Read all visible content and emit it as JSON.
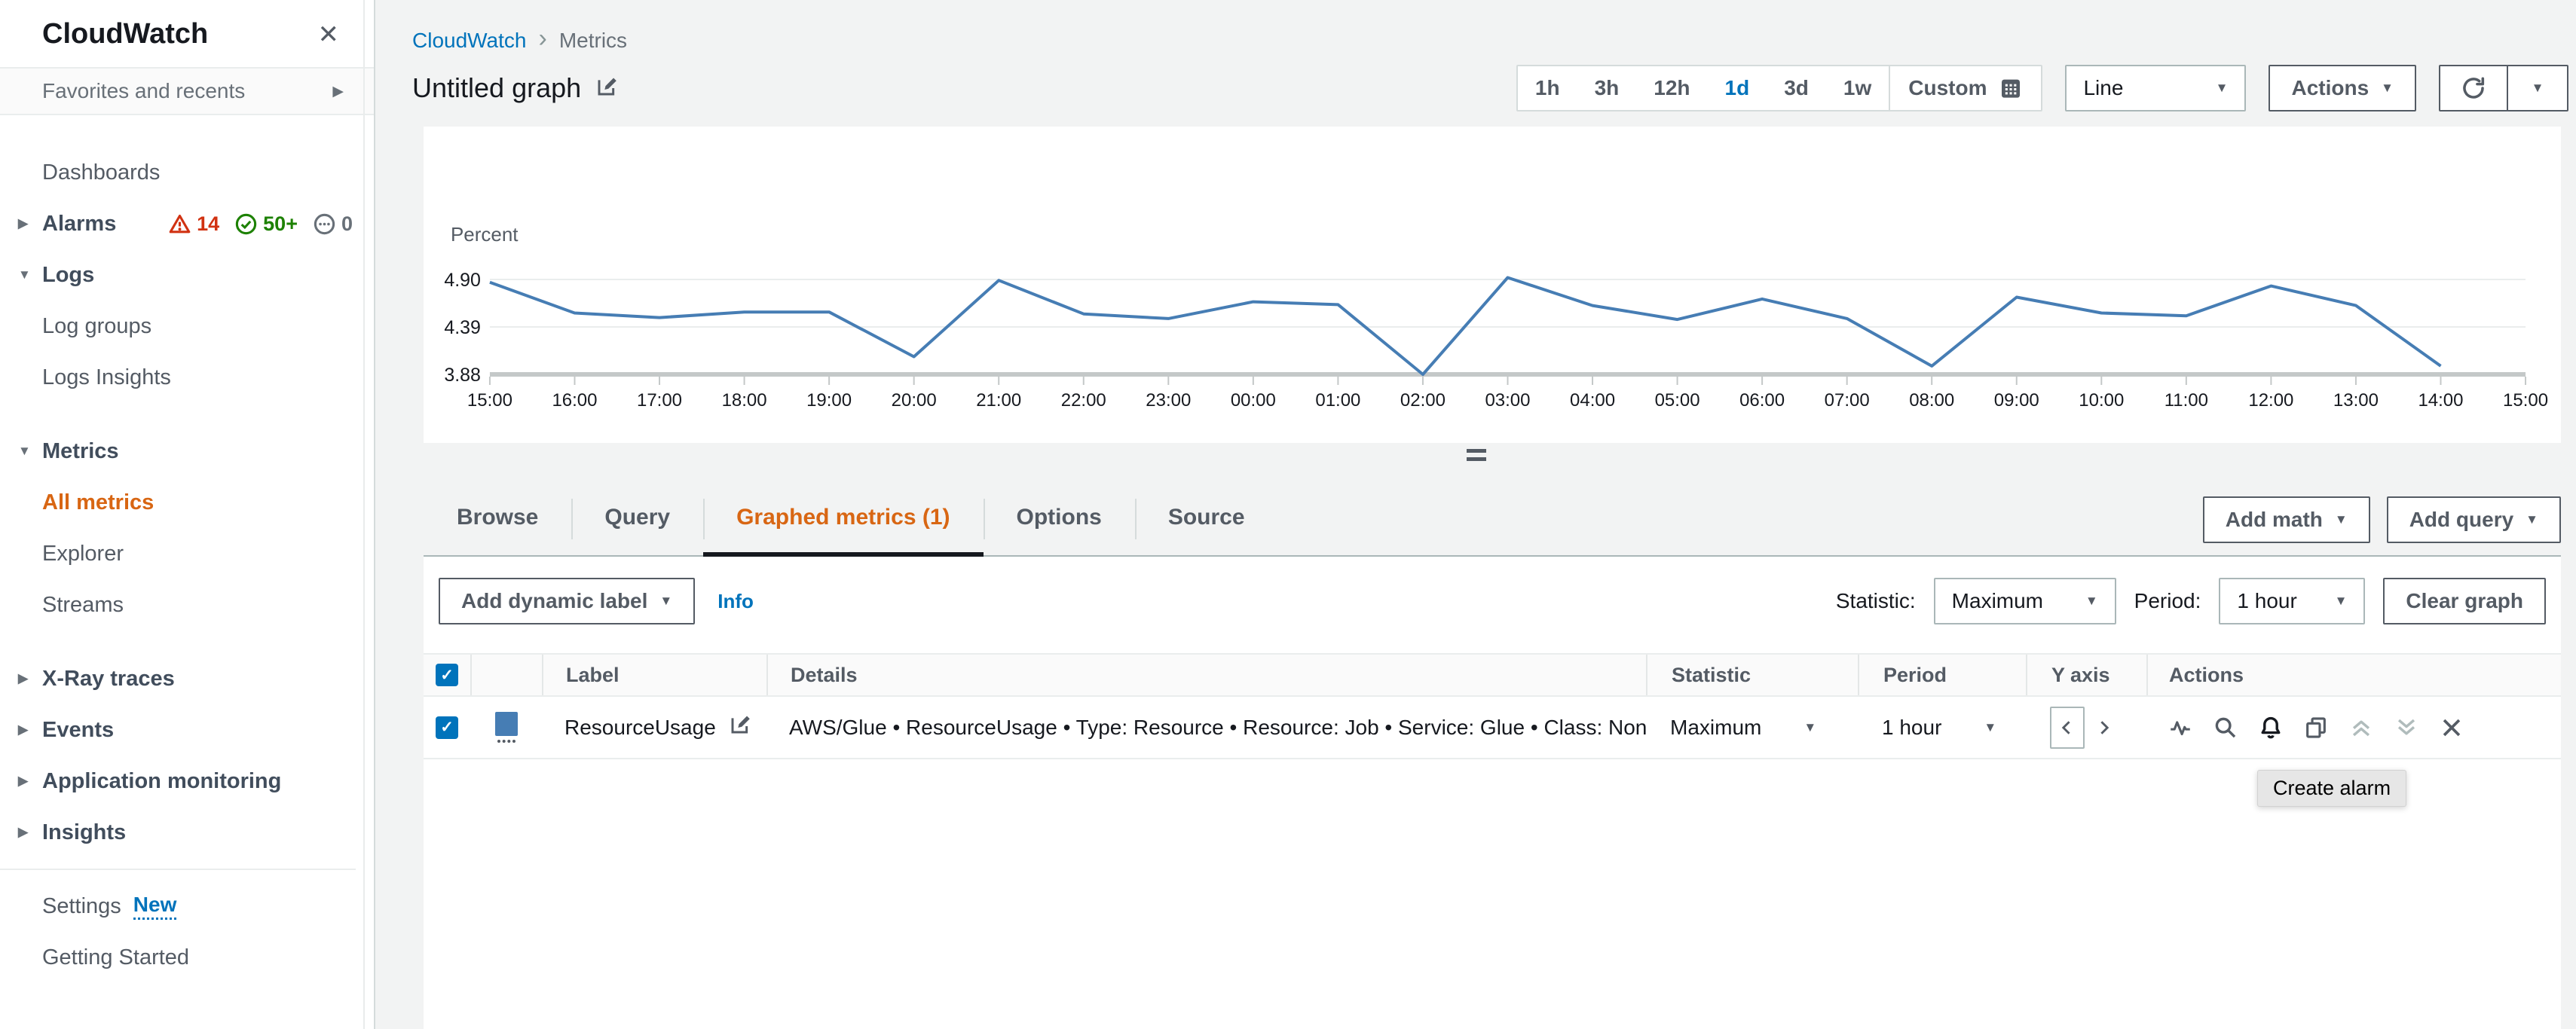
{
  "colors": {
    "accent_orange": "#d86613",
    "link_blue": "#0073bb",
    "series_blue": "#467db4",
    "alarm_red": "#d13212",
    "ok_green": "#1d8102",
    "insufficient_gray": "#687078"
  },
  "sidebar": {
    "title": "CloudWatch",
    "favorites": "Favorites and recents",
    "items": [
      {
        "label": "Dashboards",
        "type": "link"
      },
      {
        "label": "Alarms",
        "type": "section",
        "arrow": "right",
        "badges": [
          {
            "icon": "alarm-warning-icon",
            "count": "14",
            "cls": "b-red"
          },
          {
            "icon": "alarm-ok-icon",
            "count": "50+",
            "cls": "b-green"
          },
          {
            "icon": "alarm-insufficient-icon",
            "count": "0",
            "cls": "b-gray"
          }
        ]
      },
      {
        "label": "Logs",
        "type": "section",
        "arrow": "down"
      },
      {
        "label": "Log groups",
        "type": "link"
      },
      {
        "label": "Logs Insights",
        "type": "link"
      },
      {
        "label": "Metrics",
        "type": "section",
        "arrow": "down",
        "gap_before": true
      },
      {
        "label": "All metrics",
        "type": "link",
        "active": true
      },
      {
        "label": "Explorer",
        "type": "link"
      },
      {
        "label": "Streams",
        "type": "link"
      },
      {
        "label": "X-Ray traces",
        "type": "section",
        "arrow": "right",
        "gap_before": true
      },
      {
        "label": "Events",
        "type": "section",
        "arrow": "right"
      },
      {
        "label": "Application monitoring",
        "type": "section",
        "arrow": "right"
      },
      {
        "label": "Insights",
        "type": "section",
        "arrow": "right"
      },
      {
        "label": "Settings",
        "type": "link",
        "divider_before": true,
        "badge_text": "New"
      },
      {
        "label": "Getting Started",
        "type": "link"
      }
    ]
  },
  "breadcrumb": {
    "items": [
      "CloudWatch",
      "Metrics"
    ]
  },
  "header": {
    "title": "Untitled graph"
  },
  "time_controls": {
    "ranges": [
      "1h",
      "3h",
      "12h",
      "1d",
      "3d",
      "1w"
    ],
    "selected": "1d",
    "custom": "Custom",
    "chart_type": "Line",
    "actions": "Actions"
  },
  "chart_data": {
    "type": "line",
    "unit_label": "Percent",
    "y_ticks": [
      "4.90",
      "4.39",
      "3.88"
    ],
    "ylim": [
      3.88,
      5.15
    ],
    "grid": true,
    "legend": false,
    "x_ticks": [
      "15:00",
      "16:00",
      "17:00",
      "18:00",
      "19:00",
      "20:00",
      "21:00",
      "22:00",
      "23:00",
      "00:00",
      "01:00",
      "02:00",
      "03:00",
      "04:00",
      "05:00",
      "06:00",
      "07:00",
      "08:00",
      "09:00",
      "10:00",
      "11:00",
      "12:00",
      "13:00",
      "14:00",
      "15:00"
    ],
    "series": [
      {
        "name": "ResourceUsage",
        "color": "#467db4",
        "statistic": "Maximum",
        "period": "1 hour",
        "values": [
          4.87,
          4.54,
          4.49,
          4.55,
          4.55,
          4.07,
          4.89,
          4.53,
          4.48,
          4.66,
          4.63,
          3.88,
          4.92,
          4.62,
          4.47,
          4.69,
          4.48,
          3.97,
          4.71,
          4.54,
          4.51,
          4.83,
          4.62,
          3.97
        ]
      }
    ]
  },
  "tabs": [
    {
      "label": "Browse"
    },
    {
      "label": "Query"
    },
    {
      "label": "Graphed metrics (1)",
      "active": true
    },
    {
      "label": "Options"
    },
    {
      "label": "Source"
    }
  ],
  "graph_actions": {
    "add_math": "Add math",
    "add_query": "Add query"
  },
  "toolbar": {
    "add_dynamic_label": "Add dynamic label",
    "info": "Info",
    "statistic_label": "Statistic:",
    "statistic_value": "Maximum",
    "period_label": "Period:",
    "period_value": "1 hour",
    "clear_graph": "Clear graph"
  },
  "table": {
    "columns": [
      "Label",
      "Details",
      "Statistic",
      "Period",
      "Y axis",
      "Actions"
    ],
    "row": {
      "label": "ResourceUsage",
      "details": "AWS/Glue • ResourceUsage • Type: Resource • Resource: Job • Service: Glue • Class: None",
      "statistic": "Maximum",
      "period": "1 hour",
      "color": "#467db4"
    }
  },
  "tooltip": {
    "text": "Create alarm"
  }
}
